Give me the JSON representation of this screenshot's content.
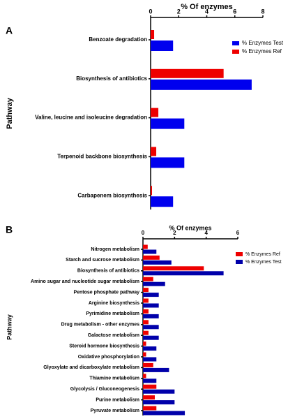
{
  "chart_data": [
    {
      "type": "barh",
      "panel": "A",
      "title": "% Of enzymes",
      "y_label": "Pathway",
      "categories": [
        "Benzoate degradation",
        "Biosynthesis of antibiotics",
        "Valine, leucine and isoleucine degradation",
        "Terpenoid backbone biosynthesis",
        "Carbapenem biosynthesis"
      ],
      "series": [
        {
          "name": "% Enzymes Test",
          "color": "#0000ee",
          "values": [
            1.6,
            7.2,
            2.4,
            2.4,
            1.6
          ]
        },
        {
          "name": "% Enzymes Ref",
          "color": "#ee0000",
          "values": [
            0.25,
            5.2,
            0.55,
            0.4,
            0.1
          ]
        }
      ],
      "xlim": [
        0,
        8
      ],
      "xticks": [
        0,
        2,
        4,
        6,
        8
      ]
    },
    {
      "type": "barh",
      "panel": "B",
      "title": "% Of enzymes",
      "y_label": "Pathway",
      "categories": [
        "Nitrogen metabolism",
        "Starch and sucrose metabolism",
        "Biosynthesis of antibiotics",
        "Amino sugar and nucleotide sugar metabolism",
        "Pentose phosphate pathway",
        "Arginine biosynthesis",
        "Pyrimidine metabolism",
        "Drug metabolism - other enzymes",
        "Galactose metabolism",
        "Steroid hormone biosynthesis",
        "Oxidative phosphorylation",
        "Glyoxylate and dicarboxylate metabolism",
        "Thiamine metabolism",
        "Glycolysis / Gluconeogenesis",
        "Purine metabolism",
        "Pyruvate metabolism"
      ],
      "series": [
        {
          "name": "% Enzymes Ref",
          "color": "#ee0000",
          "values": [
            0.3,
            1.05,
            3.85,
            0.65,
            0.35,
            0.35,
            0.35,
            0.35,
            0.35,
            0.2,
            0.2,
            0.65,
            0.2,
            0.85,
            0.75,
            0.85
          ]
        },
        {
          "name": "% Enzymes Test",
          "color": "#0000aa",
          "values": [
            0.85,
            1.8,
            5.1,
            1.4,
            1.0,
            1.0,
            1.0,
            1.0,
            1.0,
            0.85,
            0.85,
            1.65,
            0.85,
            2.0,
            2.0,
            2.65
          ]
        }
      ],
      "xlim": [
        0,
        6
      ],
      "xticks": [
        0,
        2,
        4,
        6
      ]
    }
  ]
}
